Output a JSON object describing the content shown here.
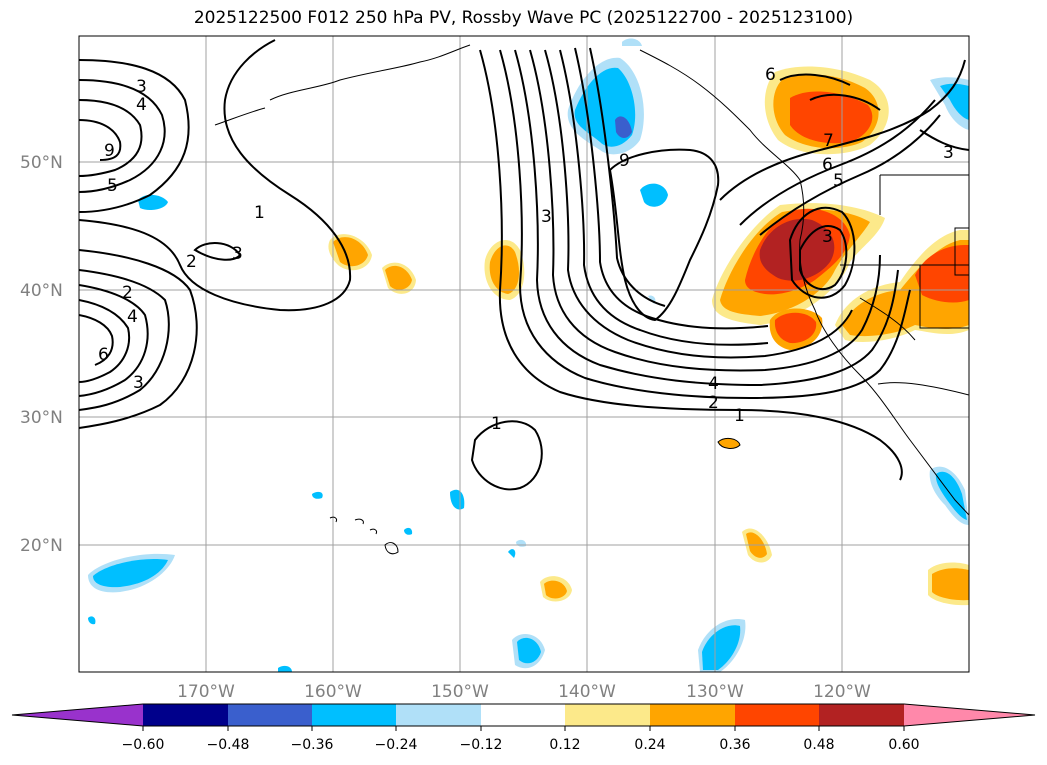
{
  "title": "2025122500 F012 250 hPa PV, Rossby Wave PC (2025122700 - 2025123100)",
  "map": {
    "lat_labels": [
      "50°N",
      "40°N",
      "30°N",
      "20°N"
    ],
    "lon_labels": [
      "170°W",
      "160°W",
      "150°W",
      "140°W",
      "130°W",
      "120°W"
    ],
    "gridlines": true,
    "contour_labels": [
      "3",
      "4",
      "9",
      "5",
      "1",
      "3",
      "2",
      "2",
      "4",
      "6",
      "3",
      "3",
      "9",
      "6",
      "7",
      "6",
      "5",
      "3",
      "3",
      "4",
      "2",
      "1",
      "1"
    ]
  },
  "colorbar": {
    "tick_labels": [
      "−0.60",
      "−0.48",
      "−0.36",
      "−0.24",
      "−0.12",
      "0.12",
      "0.24",
      "0.36",
      "0.48",
      "0.60"
    ],
    "colors": [
      "#9932cc",
      "#00008b",
      "#3a5fcd",
      "#00bfff",
      "#b0e0f8",
      "#ffffff",
      "#fce98a",
      "#ffa500",
      "#ff4500",
      "#b22222",
      "#ff88aa"
    ]
  }
}
